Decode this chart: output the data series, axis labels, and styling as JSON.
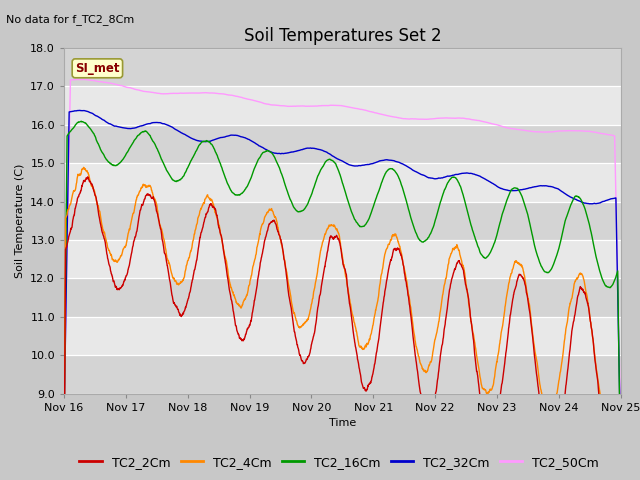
{
  "title": "Soil Temperatures Set 2",
  "subtitle": "No data for f_TC2_8Cm",
  "ylabel": "Soil Temperature (C)",
  "xlabel": "Time",
  "ylim": [
    9.0,
    18.0
  ],
  "yticks": [
    9.0,
    10.0,
    11.0,
    12.0,
    13.0,
    14.0,
    15.0,
    16.0,
    17.0,
    18.0
  ],
  "xtick_labels": [
    "Nov 16",
    "Nov 17",
    "Nov 18",
    "Nov 19",
    "Nov 20",
    "Nov 21",
    "Nov 22",
    "Nov 23",
    "Nov 24",
    "Nov 25"
  ],
  "series_colors": {
    "TC2_2Cm": "#cc0000",
    "TC2_4Cm": "#ff8800",
    "TC2_16Cm": "#009900",
    "TC2_32Cm": "#0000cc",
    "TC2_50Cm": "#ff99ff"
  },
  "legend_labels": [
    "TC2_2Cm",
    "TC2_4Cm",
    "TC2_16Cm",
    "TC2_32Cm",
    "TC2_50Cm"
  ],
  "si_met_box_color": "#ffffcc",
  "si_met_text_color": "#880000",
  "title_fontsize": 12,
  "axis_fontsize": 8,
  "legend_fontsize": 9
}
